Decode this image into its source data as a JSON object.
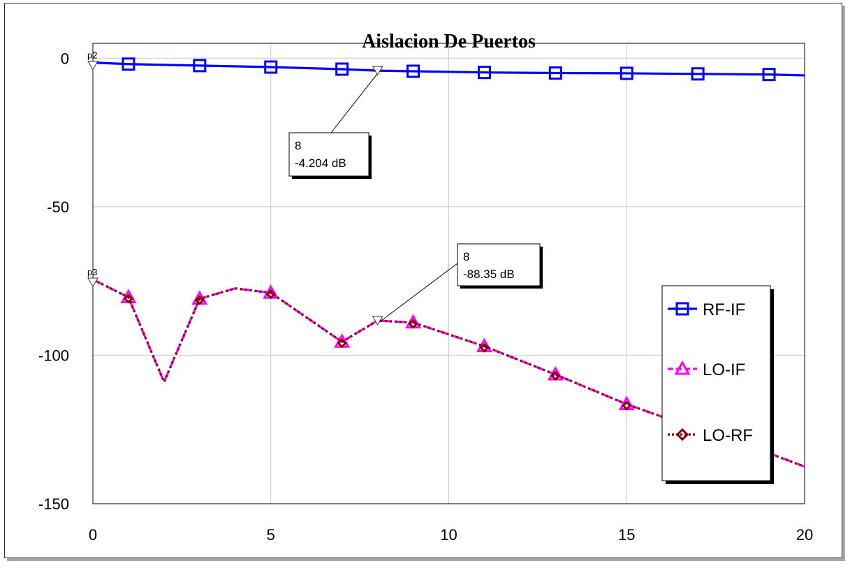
{
  "chart_data": {
    "type": "line",
    "title": "Aislacion De Puertos",
    "xlabel": "",
    "ylabel": "",
    "xlim": [
      0,
      20
    ],
    "ylim": [
      -150,
      5
    ],
    "x_ticks": [
      "0",
      "5",
      "10",
      "15",
      "20"
    ],
    "y_ticks": [
      "0",
      "-50",
      "-100",
      "-150"
    ],
    "grid": true,
    "legend_position": "right",
    "series": [
      {
        "name": "RF-IF",
        "color": "#0000ff",
        "marker": "square",
        "dash": "solid",
        "x": [
          0,
          1,
          3,
          5,
          7,
          8,
          9,
          11,
          13,
          15,
          17,
          19,
          20
        ],
        "y": [
          -1.5,
          -2.0,
          -2.5,
          -3.0,
          -3.7,
          -4.204,
          -4.4,
          -4.8,
          -5.0,
          -5.1,
          -5.3,
          -5.5,
          -5.8
        ],
        "marker_x": [
          1,
          3,
          5,
          7,
          9,
          11,
          13,
          15,
          17,
          19
        ]
      },
      {
        "name": "LO-IF",
        "color": "#ff00ff",
        "marker": "triangle",
        "dash": "dashed",
        "x": [
          0,
          1,
          2,
          3,
          4,
          5,
          7,
          8,
          9,
          11,
          13,
          15,
          17,
          19,
          20
        ],
        "y": [
          -74.5,
          -80.5,
          -109,
          -81,
          -77.5,
          -79,
          -95.5,
          -88.35,
          -89,
          -97,
          -106.5,
          -116.5,
          -125,
          -133,
          -137.5
        ],
        "marker_x": [
          1,
          3,
          5,
          7,
          9,
          11,
          13,
          15
        ]
      },
      {
        "name": "LO-RF",
        "color": "#800000",
        "marker": "diamond",
        "dash": "dotted",
        "x": [
          0,
          1,
          2,
          3,
          4,
          5,
          7,
          8,
          9,
          11,
          13,
          15,
          17,
          19,
          20
        ],
        "y": [
          -74.5,
          -80.5,
          -109,
          -81,
          -77.5,
          -79,
          -95.5,
          -88.35,
          -89,
          -97,
          -106.5,
          -116.5,
          -125,
          -133,
          -137.5
        ],
        "marker_x": [
          1,
          3,
          5,
          7,
          9,
          11,
          13,
          15
        ]
      }
    ],
    "markers": [
      {
        "tag": "p2",
        "x": 0,
        "y": -1.5
      },
      {
        "tag": "p3",
        "x": 0,
        "y": -74.5
      }
    ],
    "annotations": [
      {
        "x": 8,
        "y": -4.204,
        "line1": "8",
        "line2": "-4.204 dB"
      },
      {
        "x": 8,
        "y": -88.35,
        "line1": "8",
        "line2": "-88.35 dB"
      }
    ]
  }
}
